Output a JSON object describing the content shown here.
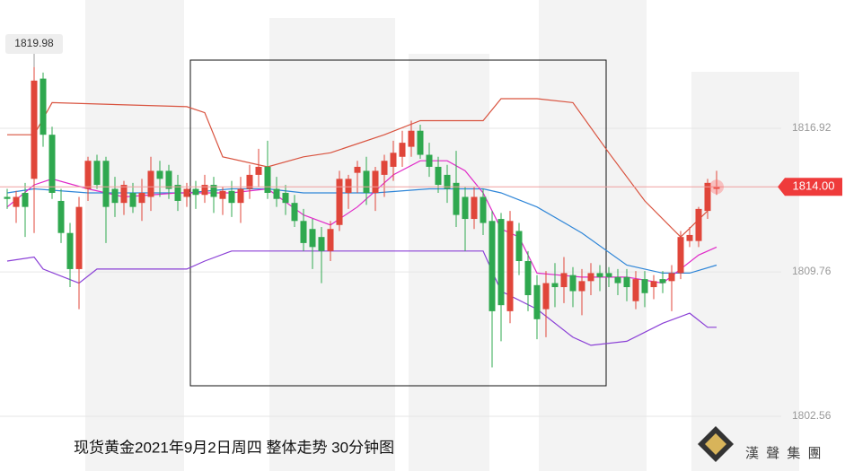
{
  "chart_data": {
    "type": "candlestick",
    "title": "现货黄金2021年9月2日周四  整体走势  30分钟图",
    "logo_text": "漢 聲 集 團",
    "xlim": [
      -0.8,
      93.3
    ],
    "ylim": [
      1799.83,
      1823.32
    ],
    "yticks": [
      1816.92,
      1809.76,
      1802.56
    ],
    "grid": true,
    "up_color": "#e0463a",
    "down_color": "#2fa84f",
    "candles": [
      [
        1813.5,
        1813.9,
        1812.9,
        1813.4
      ],
      [
        1813.0,
        1813.8,
        1812.2,
        1813.5
      ],
      [
        1813.7,
        1814.2,
        1811.5,
        1813.0
      ],
      [
        1814.4,
        1819.98,
        1811.7,
        1819.3
      ],
      [
        1819.4,
        1819.7,
        1816.0,
        1816.6
      ],
      [
        1816.6,
        1817.0,
        1813.4,
        1813.7
      ],
      [
        1813.3,
        1813.9,
        1811.2,
        1811.7
      ],
      [
        1811.7,
        1812.2,
        1809.0,
        1809.9
      ],
      [
        1809.9,
        1813.5,
        1807.9,
        1813.0
      ],
      [
        1813.9,
        1815.5,
        1813.3,
        1815.3
      ],
      [
        1815.3,
        1815.6,
        1813.9,
        1814.1
      ],
      [
        1815.3,
        1815.5,
        1811.2,
        1813.0
      ],
      [
        1813.9,
        1814.5,
        1812.5,
        1813.2
      ],
      [
        1813.2,
        1814.3,
        1812.6,
        1814.1
      ],
      [
        1813.7,
        1814.2,
        1812.7,
        1813.0
      ],
      [
        1813.2,
        1814.4,
        1812.3,
        1813.7
      ],
      [
        1813.5,
        1815.5,
        1812.8,
        1814.8
      ],
      [
        1814.8,
        1815.3,
        1813.5,
        1814.4
      ],
      [
        1814.8,
        1815.1,
        1813.4,
        1813.9
      ],
      [
        1814.1,
        1814.6,
        1812.8,
        1813.3
      ],
      [
        1813.5,
        1814.2,
        1813.0,
        1813.9
      ],
      [
        1813.9,
        1814.3,
        1812.9,
        1813.6
      ],
      [
        1813.6,
        1814.6,
        1813.2,
        1814.1
      ],
      [
        1814.1,
        1814.5,
        1812.7,
        1813.5
      ],
      [
        1813.4,
        1814.0,
        1812.6,
        1813.8
      ],
      [
        1813.8,
        1814.3,
        1812.5,
        1813.2
      ],
      [
        1813.2,
        1814.5,
        1812.2,
        1813.9
      ],
      [
        1813.9,
        1815.1,
        1813.4,
        1814.6
      ],
      [
        1814.6,
        1815.9,
        1814.0,
        1815.0
      ],
      [
        1815.0,
        1816.3,
        1813.4,
        1813.7
      ],
      [
        1813.9,
        1814.5,
        1813.0,
        1813.4
      ],
      [
        1813.7,
        1814.1,
        1812.6,
        1813.2
      ],
      [
        1813.2,
        1813.6,
        1812.0,
        1812.3
      ],
      [
        1812.3,
        1812.9,
        1810.8,
        1811.2
      ],
      [
        1811.9,
        1812.4,
        1809.9,
        1811.0
      ],
      [
        1811.5,
        1812.0,
        1809.2,
        1810.8
      ],
      [
        1810.8,
        1812.3,
        1810.3,
        1811.9
      ],
      [
        1812.1,
        1814.8,
        1811.8,
        1814.4
      ],
      [
        1813.7,
        1814.6,
        1812.9,
        1814.4
      ],
      [
        1814.7,
        1815.3,
        1813.7,
        1815.0
      ],
      [
        1814.8,
        1815.5,
        1813.1,
        1813.7
      ],
      [
        1813.7,
        1815.0,
        1812.8,
        1814.8
      ],
      [
        1814.6,
        1815.6,
        1813.5,
        1815.3
      ],
      [
        1815.0,
        1816.3,
        1814.3,
        1815.7
      ],
      [
        1815.5,
        1816.8,
        1815.0,
        1816.2
      ],
      [
        1816.0,
        1817.3,
        1815.5,
        1816.8
      ],
      [
        1816.8,
        1817.1,
        1815.4,
        1815.6
      ],
      [
        1815.6,
        1816.2,
        1814.5,
        1815.0
      ],
      [
        1815.0,
        1815.5,
        1813.7,
        1814.1
      ],
      [
        1814.6,
        1815.1,
        1813.2,
        1813.9
      ],
      [
        1814.2,
        1815.8,
        1812.0,
        1812.6
      ],
      [
        1813.5,
        1814.0,
        1810.8,
        1812.4
      ],
      [
        1812.4,
        1814.0,
        1811.9,
        1813.5
      ],
      [
        1813.5,
        1813.9,
        1811.6,
        1812.2
      ],
      [
        1812.3,
        1812.8,
        1805.0,
        1807.8
      ],
      [
        1812.4,
        1812.7,
        1806.3,
        1808.1
      ],
      [
        1807.8,
        1812.8,
        1807.2,
        1812.3
      ],
      [
        1811.8,
        1812.2,
        1809.6,
        1810.3
      ],
      [
        1810.3,
        1810.8,
        1807.8,
        1808.6
      ],
      [
        1809.1,
        1809.6,
        1806.4,
        1807.4
      ],
      [
        1807.9,
        1809.8,
        1806.5,
        1809.2
      ],
      [
        1809.2,
        1810.2,
        1808.0,
        1809.0
      ],
      [
        1809.0,
        1810.5,
        1808.2,
        1809.7
      ],
      [
        1809.6,
        1810.0,
        1808.0,
        1808.8
      ],
      [
        1808.8,
        1809.9,
        1807.6,
        1809.3
      ],
      [
        1809.3,
        1810.2,
        1808.6,
        1809.7
      ],
      [
        1809.7,
        1810.1,
        1808.8,
        1809.5
      ],
      [
        1809.7,
        1810.0,
        1809.0,
        1809.5
      ],
      [
        1809.5,
        1809.9,
        1808.6,
        1809.2
      ],
      [
        1809.5,
        1809.9,
        1808.3,
        1809.0
      ],
      [
        1808.3,
        1809.8,
        1807.9,
        1809.4
      ],
      [
        1809.4,
        1809.8,
        1808.0,
        1808.7
      ],
      [
        1809.0,
        1809.6,
        1808.4,
        1809.3
      ],
      [
        1809.4,
        1809.8,
        1808.7,
        1809.2
      ],
      [
        1809.3,
        1810.1,
        1807.8,
        1809.7
      ],
      [
        1809.7,
        1811.8,
        1809.4,
        1811.5
      ],
      [
        1811.3,
        1812.0,
        1811.0,
        1811.6
      ],
      [
        1811.3,
        1813.0,
        1811.0,
        1812.9
      ],
      [
        1812.8,
        1814.4,
        1812.4,
        1814.2
      ],
      [
        1813.9,
        1814.8,
        1813.6,
        1814.0
      ]
    ],
    "lines": [
      {
        "color": "#d9533f",
        "x": [
          0,
          3,
          5,
          20,
          22,
          24,
          29,
          33,
          36,
          42,
          46,
          53,
          55,
          59,
          63,
          67,
          71,
          75,
          78
        ],
        "values": [
          1816.6,
          1816.6,
          1818.2,
          1818.0,
          1817.7,
          1815.5,
          1815.0,
          1815.5,
          1815.7,
          1816.6,
          1817.3,
          1817.3,
          1818.4,
          1818.4,
          1818.2,
          1815.7,
          1813.3,
          1811.5,
          1812.8
        ]
      },
      {
        "color": "#8a3fd6",
        "x": [
          0,
          3,
          4,
          8,
          10,
          20,
          22,
          25,
          29,
          34,
          53,
          55,
          59,
          63,
          65,
          69,
          73,
          76,
          78,
          79
        ],
        "values": [
          1810.3,
          1810.5,
          1809.9,
          1809.2,
          1809.9,
          1809.9,
          1810.3,
          1810.8,
          1810.8,
          1810.8,
          1810.8,
          1808.8,
          1807.9,
          1806.5,
          1806.1,
          1806.3,
          1807.2,
          1807.7,
          1807.0,
          1807.0
        ]
      },
      {
        "color": "#2f86d8",
        "x": [
          0,
          3,
          9,
          20,
          25,
          29,
          33,
          41,
          47,
          53,
          55,
          59,
          64,
          69,
          73,
          76,
          79
        ],
        "values": [
          1813.7,
          1813.9,
          1813.7,
          1813.7,
          1813.9,
          1813.9,
          1813.7,
          1813.7,
          1813.9,
          1813.9,
          1813.7,
          1813.0,
          1811.7,
          1810.1,
          1809.7,
          1809.7,
          1810.1
        ]
      },
      {
        "color": "#e02ac8",
        "x": [
          0,
          3,
          5,
          9,
          13,
          19,
          25,
          29,
          33,
          36,
          39,
          43,
          46,
          49,
          51,
          53,
          55,
          57,
          59,
          64,
          69,
          73,
          75,
          77,
          79
        ],
        "values": [
          1813.0,
          1814.1,
          1814.4,
          1813.9,
          1813.5,
          1813.7,
          1813.7,
          1813.9,
          1812.6,
          1812.1,
          1813.0,
          1814.6,
          1815.3,
          1815.3,
          1814.8,
          1813.7,
          1811.9,
          1811.5,
          1809.7,
          1809.5,
          1809.5,
          1809.2,
          1809.9,
          1810.6,
          1811.0
        ]
      }
    ],
    "high_label": {
      "value": 1819.98,
      "label": "1819.98"
    },
    "current_price": {
      "value": 1814,
      "label": "1814.00"
    }
  }
}
